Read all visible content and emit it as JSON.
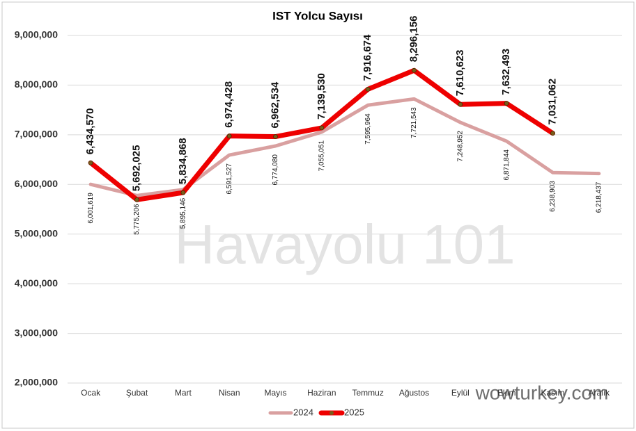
{
  "chart_data": {
    "type": "line",
    "title": "IST Yolcu Sayısı",
    "categories": [
      "Ocak",
      "Şubat",
      "Mart",
      "Nisan",
      "Mayıs",
      "Haziran",
      "Temmuz",
      "Ağustos",
      "Eylül",
      "Ekim",
      "Kasım",
      "Aralık"
    ],
    "series": [
      {
        "name": "2024",
        "color": "#d9a0a0",
        "values": [
          6001619,
          5775206,
          5895146,
          6591527,
          6774080,
          7055051,
          7595964,
          7721543,
          7248952,
          6871844,
          6238903,
          6218437
        ],
        "value_labels": [
          "6,001,619",
          "5,775,206",
          "5,895,146",
          "6,591,527",
          "6,774,080",
          "7,055,051",
          "7,595,964",
          "7,721,543",
          "7,248,952",
          "6,871,844",
          "6,238,903",
          "6,218,437"
        ]
      },
      {
        "name": "2025",
        "color": "#ee0000",
        "values": [
          6434570,
          5692025,
          5834868,
          6974428,
          6962534,
          7139530,
          7916674,
          8296156,
          7610623,
          7632493,
          7031062,
          null
        ],
        "value_labels": [
          "6,434,570",
          "5,692,025",
          "5,834,868",
          "6,974,428",
          "6,962,534",
          "7,139,530",
          "7,916,674",
          "8,296,156",
          "7,610,623",
          "7,632,493",
          "7,031,062",
          null
        ]
      }
    ],
    "ylim": [
      2000000,
      9000000
    ],
    "yticks": [
      {
        "value": 2000000,
        "label": "2,000,000"
      },
      {
        "value": 3000000,
        "label": "3,000,000"
      },
      {
        "value": 4000000,
        "label": "4,000,000"
      },
      {
        "value": 5000000,
        "label": "5,000,000"
      },
      {
        "value": 6000000,
        "label": "6,000,000"
      },
      {
        "value": 7000000,
        "label": "7,000,000"
      },
      {
        "value": 8000000,
        "label": "8,000,000"
      },
      {
        "value": 9000000,
        "label": "9,000,000"
      }
    ],
    "grid": true,
    "legend": "bottom",
    "watermarks": [
      "Havayolu 101",
      "wowturkey.com"
    ]
  }
}
